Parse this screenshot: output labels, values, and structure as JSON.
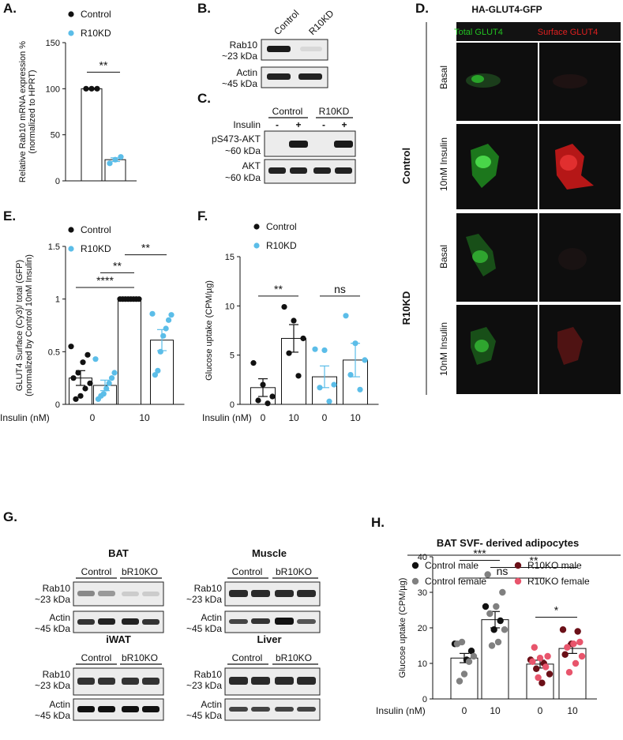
{
  "colors": {
    "control": "#111111",
    "r10kd": "#5bbde8",
    "control_male": "#111111",
    "control_female": "#808080",
    "r10ko_male": "#6b1018",
    "r10ko_female": "#e8556c",
    "total_glut4": "#22c222",
    "surface_glut4": "#e02020",
    "micro_bg": "#0e0e0e"
  },
  "panel_labels": {
    "A": "A.",
    "B": "B.",
    "C": "C.",
    "D": "D.",
    "E": "E.",
    "F": "F.",
    "G": "G.",
    "H": "H."
  },
  "panel_b": {
    "lanes": [
      "Control",
      "R10KD"
    ],
    "blots": [
      {
        "name": "Rab10",
        "size": "~23 kDa"
      },
      {
        "name": "Actin",
        "size": "~45 kDa"
      }
    ]
  },
  "panel_c": {
    "groups": [
      "Control",
      "R10KD"
    ],
    "insulin_label": "Insulin",
    "lane_signs": [
      "-",
      "+",
      "-",
      "+"
    ],
    "blots": [
      {
        "name": "pS473-AKT",
        "size": "~60 kDa"
      },
      {
        "name": "AKT",
        "size": "~60 kDa"
      }
    ]
  },
  "panel_d": {
    "title": "HA-GLUT4-GFP",
    "col_labels": [
      "Total GLUT4",
      "Surface GLUT4"
    ],
    "groups": [
      "Control",
      "R10KD"
    ],
    "row_labels": [
      "Basal",
      "10nM Insulin",
      "Basal",
      "10nM Insulin"
    ]
  },
  "panel_g": {
    "tissues": [
      {
        "name": "BAT",
        "groups": [
          "Control",
          "bR10KO"
        ]
      },
      {
        "name": "Muscle",
        "groups": [
          "Control",
          "bR10KO"
        ]
      },
      {
        "name": "iWAT",
        "groups": [
          "Control",
          "bR10KO"
        ]
      },
      {
        "name": "Liver",
        "groups": [
          "Control",
          "bR10KO"
        ]
      }
    ],
    "blots": [
      {
        "name": "Rab10",
        "size": "~23 kDa"
      },
      {
        "name": "Actin",
        "size": "~45 kDa"
      }
    ]
  },
  "chart_data": [
    {
      "id": "A",
      "type": "bar",
      "ylabel": [
        "Relative Rab10 mRNA expression %",
        "(normalized to HPRT)"
      ],
      "ylim": [
        0,
        150
      ],
      "yticks": [
        0,
        50,
        100,
        150
      ],
      "categories": [
        "Control",
        "R10KD"
      ],
      "values": [
        100,
        23
      ],
      "errors": [
        0.5,
        2
      ],
      "points": [
        [
          100,
          100,
          100
        ],
        [
          19,
          23,
          26
        ]
      ],
      "point_colors": [
        "#111111",
        "#5bbde8"
      ],
      "legend": [
        "Control",
        "R10KD"
      ],
      "significance": [
        {
          "label": "**",
          "from": 0,
          "to": 1,
          "y": 118
        }
      ]
    },
    {
      "id": "E",
      "type": "bar",
      "ylabel": [
        "GLUT4 Surface (Cy3)/ total (GFP)",
        "(normalized by Control 10nM Insulin)"
      ],
      "ylim": [
        0,
        1.5
      ],
      "yticks": [
        0,
        0.5,
        1,
        1.5
      ],
      "xlabel": "Insulin (nM)",
      "group_labels": [
        "0",
        "10"
      ],
      "categories": [
        "Control 0",
        "R10KD 0",
        "Control 10",
        "R10KD 10"
      ],
      "values": [
        0.25,
        0.18,
        1.0,
        0.61
      ],
      "errors": [
        0.07,
        0.05,
        0.005,
        0.1
      ],
      "points": [
        [
          0.55,
          0.47,
          0.4,
          0.3,
          0.25,
          0.2,
          0.15,
          0.08,
          0.05
        ],
        [
          0.43,
          0.3,
          0.25,
          0.2,
          0.15,
          0.1,
          0.08,
          0.05
        ],
        [
          1.0,
          1.0,
          1.0,
          1.0,
          1.0,
          1.0,
          1.0,
          1.0
        ],
        [
          0.86,
          0.85,
          0.8,
          0.72,
          0.65,
          0.5,
          0.32,
          0.28
        ]
      ],
      "point_colors": [
        "#111111",
        "#5bbde8",
        "#111111",
        "#5bbde8"
      ],
      "legend": [
        "Control",
        "R10KD"
      ],
      "significance": [
        {
          "label": "****",
          "from": 0,
          "to": 2,
          "y": 1.11
        },
        {
          "label": "**",
          "from": 1,
          "to": 2,
          "y": 1.25
        },
        {
          "label": "**",
          "from": 2,
          "to": 3,
          "y": 1.42
        }
      ]
    },
    {
      "id": "F",
      "type": "bar",
      "ylabel": [
        "Glucose uptake (CPM/µg)"
      ],
      "ylim": [
        0,
        15
      ],
      "yticks": [
        0,
        5,
        10,
        15
      ],
      "xlabel": "Insulin (nM)",
      "group_labels": [
        "0",
        "10",
        "0",
        "10"
      ],
      "categories": [
        "Control 0",
        "Control 10",
        "R10KD 0",
        "R10KD 10"
      ],
      "values": [
        1.7,
        6.7,
        2.8,
        4.5
      ],
      "errors": [
        0.9,
        1.4,
        1.1,
        1.7
      ],
      "points": [
        [
          4.2,
          2.0,
          0.8,
          0.4,
          0.1
        ],
        [
          9.9,
          8.5,
          6.7,
          5.2,
          2.9
        ],
        [
          5.6,
          5.5,
          2.0,
          1.7,
          0.3
        ],
        [
          9.0,
          6.2,
          4.5,
          3.0,
          1.5
        ]
      ],
      "point_colors": [
        "#111111",
        "#111111",
        "#5bbde8",
        "#5bbde8"
      ],
      "legend": [
        "Control",
        "R10KD"
      ],
      "significance": [
        {
          "label": "**",
          "from": 0,
          "to": 1,
          "y": 11
        },
        {
          "label": "ns",
          "from": 2,
          "to": 3,
          "y": 11
        }
      ]
    },
    {
      "id": "H",
      "type": "bar",
      "title": "BAT SVF- derived adipocytes",
      "ylabel": [
        "Glucose uptake (CPM/µg)"
      ],
      "ylim": [
        0,
        40
      ],
      "yticks": [
        0,
        10,
        20,
        30,
        40
      ],
      "xlabel": "Insulin (nM)",
      "group_labels": [
        "0",
        "10",
        "0",
        "10"
      ],
      "categories": [
        "Control 0",
        "Control 10",
        "R10KO 0",
        "R10KO 10"
      ],
      "values": [
        11.5,
        22.3,
        9.8,
        14.2
      ],
      "errors": [
        1.3,
        2.3,
        1.1,
        1.4
      ],
      "points": [
        [
          [
            15.5,
            0
          ],
          [
            13.5,
            0
          ],
          [
            11.0,
            0
          ],
          [
            16.0,
            1
          ],
          [
            15.5,
            1
          ],
          [
            12.0,
            1
          ],
          [
            10.5,
            1
          ],
          [
            7.0,
            1
          ],
          [
            5.0,
            1
          ]
        ],
        [
          [
            26.0,
            0
          ],
          [
            22.0,
            0
          ],
          [
            19.5,
            0
          ],
          [
            35.0,
            1
          ],
          [
            30.0,
            1
          ],
          [
            26.0,
            1
          ],
          [
            24.0,
            1
          ],
          [
            19.5,
            1
          ],
          [
            16.0,
            1
          ],
          [
            15.0,
            1
          ]
        ],
        [
          [
            11.0,
            2
          ],
          [
            10.0,
            2
          ],
          [
            8.5,
            2
          ],
          [
            7.0,
            2
          ],
          [
            4.5,
            2
          ],
          [
            14.5,
            3
          ],
          [
            12.0,
            3
          ],
          [
            11.5,
            3
          ],
          [
            10.5,
            3
          ],
          [
            9.0,
            3
          ],
          [
            6.0,
            3
          ]
        ],
        [
          [
            19.5,
            2
          ],
          [
            19.0,
            2
          ],
          [
            15.5,
            2
          ],
          [
            12.5,
            2
          ],
          [
            16.0,
            3
          ],
          [
            15.5,
            3
          ],
          [
            14.5,
            3
          ],
          [
            12.0,
            3
          ],
          [
            10.0,
            3
          ],
          [
            7.5,
            3
          ]
        ]
      ],
      "point_colors": [
        "#111111",
        "#808080",
        "#6b1018",
        "#e8556c"
      ],
      "legend": [
        "Control male",
        "Control female",
        "R10KO male",
        "R10KO female"
      ],
      "significance": [
        {
          "label": "***",
          "from": 0,
          "to": 1,
          "y": 39
        },
        {
          "label": "ns",
          "from": 0,
          "to": 2,
          "y": 34
        },
        {
          "label": "**",
          "from": 1,
          "to": 3,
          "y": 37
        },
        {
          "label": "*",
          "from": 2,
          "to": 3,
          "y": 23
        }
      ]
    }
  ]
}
